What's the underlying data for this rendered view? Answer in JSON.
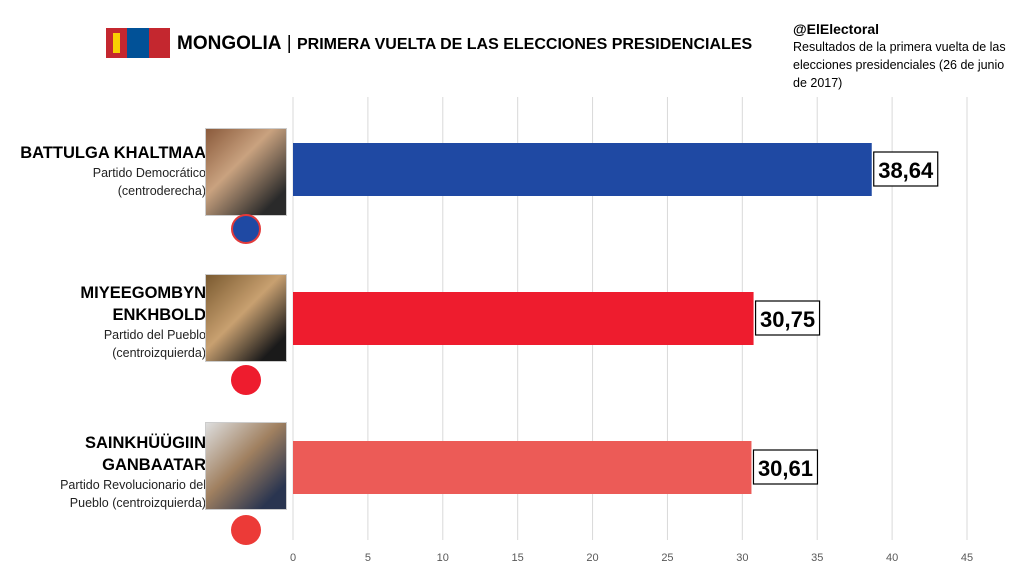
{
  "header": {
    "title_country": "MONGOLIA",
    "title_separator": "|",
    "title_rest": "PRIMERA VUELTA DE LAS ELECCIONES PRESIDENCIALES",
    "flag_colors": [
      "#C4272F",
      "#015197",
      "#C4272F"
    ]
  },
  "source": {
    "handle": "@ElElectoral",
    "description": "Resultados de la primera vuelta de las elecciones presidenciales (26 de junio de 2017)"
  },
  "candidates": [
    {
      "name": "BATTULGA KHALTMAA",
      "party": "Partido Democrático",
      "ideology": "(centroderecha)",
      "color": "#1F49A3",
      "logo": "democratic-party-logo"
    },
    {
      "name": "MIYEEGOMBYN ENKHBOLD",
      "party": "Partido del Pueblo",
      "ideology": "(centroizquierda)",
      "color": "#EE1C2E",
      "logo": "peoples-party-logo"
    },
    {
      "name": "SAINKHÜÜGIIN GANBAATAR",
      "party": "Partido Revolucionario del",
      "ideology": "Pueblo  (centroizquierda)",
      "color": "#EC5B57",
      "logo": "revolutionary-party-logo"
    }
  ],
  "chart_data": {
    "type": "bar",
    "orientation": "horizontal",
    "categories": [
      "BATTULGA KHALTMAA",
      "MIYEEGOMBYN ENKHBOLD",
      "SAINKHÜÜGIIN GANBAATAR"
    ],
    "values": [
      38.64,
      30.75,
      30.61
    ],
    "data_labels": [
      "38,64",
      "30,75",
      "30,61"
    ],
    "xlim": [
      0,
      45
    ],
    "ticks": [
      "0",
      "5",
      "10",
      "15",
      "20",
      "25",
      "30",
      "35",
      "40",
      "45"
    ],
    "grid": true
  }
}
